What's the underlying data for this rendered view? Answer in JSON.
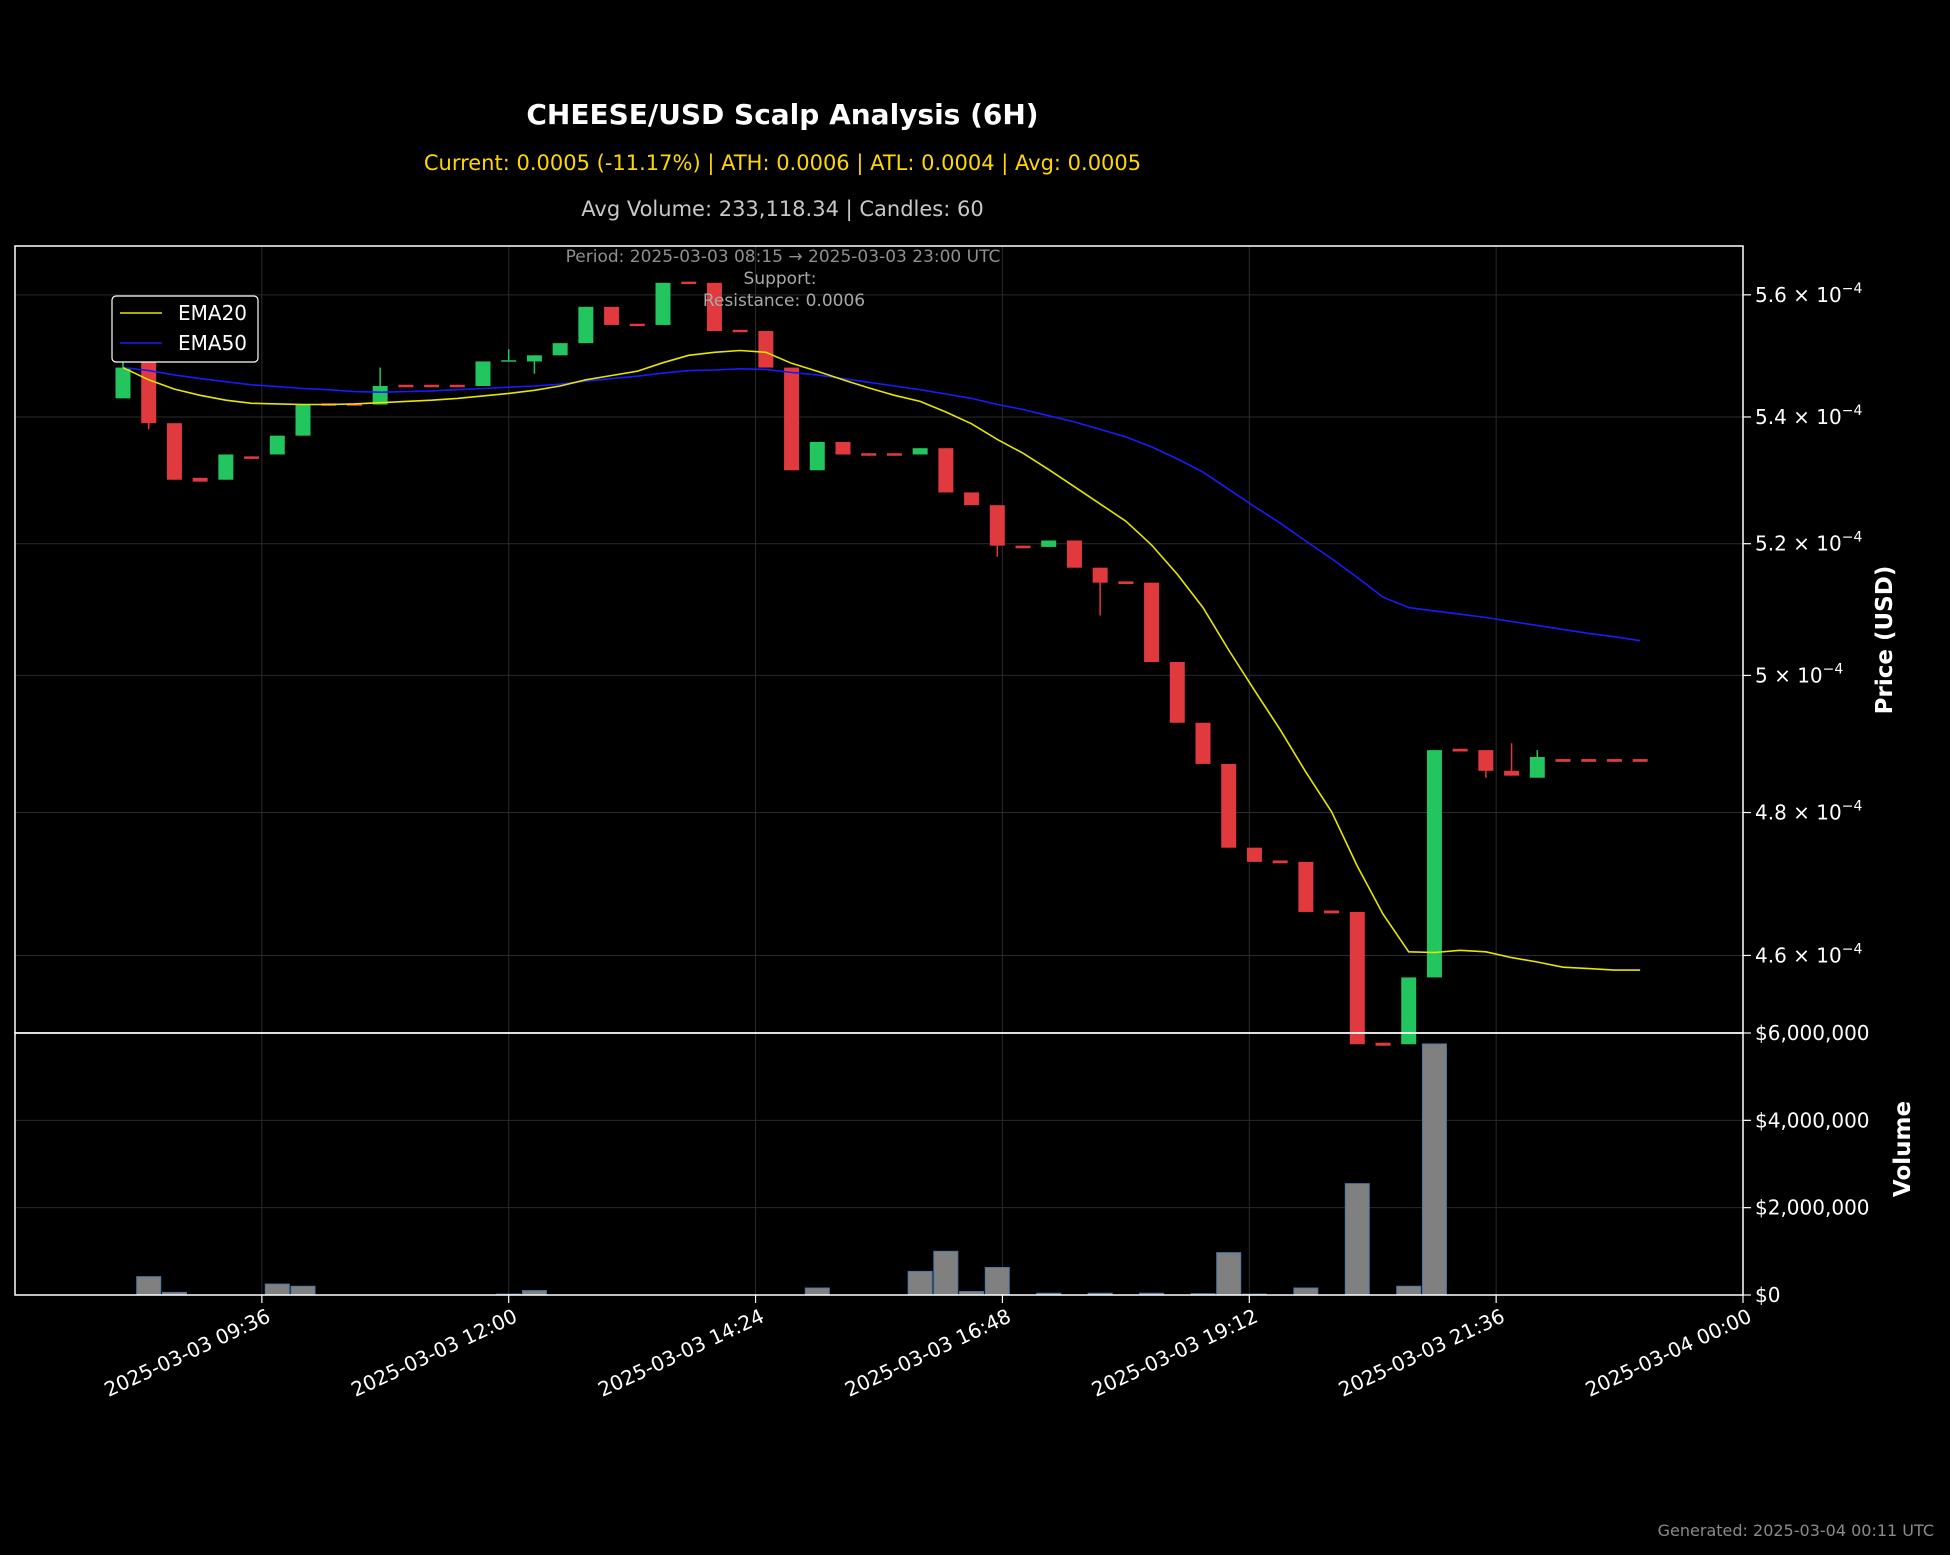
{
  "header": {
    "title": "CHEESE/USD Scalp Analysis (6H)",
    "subtitle_stats": "Current: 0.0005 (-11.17%) | ATH: 0.0006 | ATL: 0.0004 | Avg: 0.0005",
    "subtitle_volume": "Avg Volume: 233,118.34 | Candles: 60"
  },
  "annotations": {
    "period": "Period: 2025-03-03 08:15 → 2025-03-03 23:00 UTC",
    "support": "Support:",
    "resistance": "Resistance: 0.0006"
  },
  "footer": {
    "generated": "Generated: 2025-03-04 00:11 UTC"
  },
  "colors": {
    "background": "#000000",
    "up": "#22c55e",
    "down": "#e0393e",
    "ema20": "#e6e600",
    "ema50": "#1a1aff",
    "volume": "#808080",
    "volume_edge": "#4a78a8"
  },
  "chart_data": [
    {
      "type": "candlestick",
      "ylabel": "Price (USD)",
      "yscale": "log",
      "ylim": [
        0.0004495,
        0.0005682
      ],
      "xlim": [
        "2025-03-03 07:12",
        "2025-03-04 00:00"
      ],
      "x_ticks": [
        "2025-03-03 09:36",
        "2025-03-03 12:00",
        "2025-03-03 14:24",
        "2025-03-03 16:48",
        "2025-03-03 19:12",
        "2025-03-03 21:36",
        "2025-03-04 00:00"
      ],
      "y_ticks": [
        {
          "value": 0.00046,
          "mantissa": "4.6",
          "exp": "−4"
        },
        {
          "value": 0.00048,
          "mantissa": "4.8",
          "exp": "−4"
        },
        {
          "value": 0.0005,
          "mantissa": "5",
          "exp": "−4"
        },
        {
          "value": 0.00052,
          "mantissa": "5.2",
          "exp": "−4"
        },
        {
          "value": 0.00054,
          "mantissa": "5.4",
          "exp": "−4"
        },
        {
          "value": 0.00056,
          "mantissa": "5.6",
          "exp": "−4"
        }
      ],
      "grid": true,
      "legend_position": "top-left",
      "series": [
        {
          "name": "EMA20",
          "color": "#e6e600"
        },
        {
          "name": "EMA50",
          "color": "#1a1aff"
        }
      ],
      "candles": [
        {
          "t": "08:15",
          "o": 0.000543,
          "h": 0.000549,
          "l": 0.000543,
          "c": 0.000548
        },
        {
          "t": "08:30",
          "o": 0.000549,
          "h": 0.000549,
          "l": 0.000538,
          "c": 0.000539
        },
        {
          "t": "08:45",
          "o": 0.000539,
          "h": 0.000539,
          "l": 0.00053,
          "c": 0.00053
        },
        {
          "t": "09:00",
          "o": 0.0005303,
          "h": 0.0005303,
          "l": 0.0005297,
          "c": 0.0005297
        },
        {
          "t": "09:15",
          "o": 0.00053,
          "h": 0.000534,
          "l": 0.00053,
          "c": 0.000534
        },
        {
          "t": "09:30",
          "o": 0.0005337,
          "h": 0.0005337,
          "l": 0.0005333,
          "c": 0.0005333
        },
        {
          "t": "09:45",
          "o": 0.000534,
          "h": 0.000537,
          "l": 0.000534,
          "c": 0.000537
        },
        {
          "t": "10:00",
          "o": 0.000537,
          "h": 0.000542,
          "l": 0.000537,
          "c": 0.000542
        },
        {
          "t": "10:15",
          "o": 0.0005422,
          "h": 0.0005422,
          "l": 0.0005418,
          "c": 0.0005418
        },
        {
          "t": "10:30",
          "o": 0.0005422,
          "h": 0.0005422,
          "l": 0.0005418,
          "c": 0.0005418
        },
        {
          "t": "10:45",
          "o": 0.000542,
          "h": 0.000548,
          "l": 0.000542,
          "c": 0.000545
        },
        {
          "t": "11:00",
          "o": 0.0005452,
          "h": 0.0005452,
          "l": 0.0005448,
          "c": 0.0005448
        },
        {
          "t": "11:15",
          "o": 0.0005452,
          "h": 0.0005452,
          "l": 0.0005448,
          "c": 0.0005448
        },
        {
          "t": "11:30",
          "o": 0.0005452,
          "h": 0.0005452,
          "l": 0.0005448,
          "c": 0.0005448
        },
        {
          "t": "11:45",
          "o": 0.000545,
          "h": 0.000549,
          "l": 0.000545,
          "c": 0.000549
        },
        {
          "t": "12:00",
          "o": 0.000549,
          "h": 0.000551,
          "l": 0.000549,
          "c": 0.0005492
        },
        {
          "t": "12:15",
          "o": 0.000549,
          "h": 0.00055,
          "l": 0.000547,
          "c": 0.00055
        },
        {
          "t": "12:30",
          "o": 0.00055,
          "h": 0.000552,
          "l": 0.00055,
          "c": 0.000552
        },
        {
          "t": "12:45",
          "o": 0.000552,
          "h": 0.000558,
          "l": 0.000552,
          "c": 0.000558
        },
        {
          "t": "13:00",
          "o": 0.000558,
          "h": 0.000558,
          "l": 0.000555,
          "c": 0.000555
        },
        {
          "t": "13:15",
          "o": 0.0005552,
          "h": 0.0005552,
          "l": 0.0005548,
          "c": 0.0005548
        },
        {
          "t": "13:30",
          "o": 0.000555,
          "h": 0.000562,
          "l": 0.000555,
          "c": 0.000562
        },
        {
          "t": "13:45",
          "o": 0.0005622,
          "h": 0.0005622,
          "l": 0.0005618,
          "c": 0.0005618
        },
        {
          "t": "14:00",
          "o": 0.000562,
          "h": 0.000562,
          "l": 0.000554,
          "c": 0.000554
        },
        {
          "t": "14:15",
          "o": 0.0005542,
          "h": 0.0005542,
          "l": 0.0005538,
          "c": 0.0005538
        },
        {
          "t": "14:30",
          "o": 0.000554,
          "h": 0.000554,
          "l": 0.000548,
          "c": 0.000548
        },
        {
          "t": "14:45",
          "o": 0.000548,
          "h": 0.000548,
          "l": 0.0005315,
          "c": 0.0005315
        },
        {
          "t": "15:00",
          "o": 0.0005315,
          "h": 0.000536,
          "l": 0.0005315,
          "c": 0.000536
        },
        {
          "t": "15:15",
          "o": 0.000536,
          "h": 0.000536,
          "l": 0.000534,
          "c": 0.000534
        },
        {
          "t": "15:30",
          "o": 0.0005342,
          "h": 0.0005342,
          "l": 0.0005338,
          "c": 0.0005338
        },
        {
          "t": "15:45",
          "o": 0.0005342,
          "h": 0.0005342,
          "l": 0.0005338,
          "c": 0.0005338
        },
        {
          "t": "16:00",
          "o": 0.000534,
          "h": 0.000535,
          "l": 0.000534,
          "c": 0.000535
        },
        {
          "t": "16:15",
          "o": 0.000535,
          "h": 0.000535,
          "l": 0.000528,
          "c": 0.000528
        },
        {
          "t": "16:30",
          "o": 0.000528,
          "h": 0.000528,
          "l": 0.000526,
          "c": 0.000526
        },
        {
          "t": "16:45",
          "o": 0.000526,
          "h": 0.000526,
          "l": 0.000518,
          "c": 0.0005197
        },
        {
          "t": "17:00",
          "o": 0.0005197,
          "h": 0.0005197,
          "l": 0.0005193,
          "c": 0.0005193
        },
        {
          "t": "17:15",
          "o": 0.0005195,
          "h": 0.0005205,
          "l": 0.0005195,
          "c": 0.0005205
        },
        {
          "t": "17:30",
          "o": 0.0005205,
          "h": 0.0005205,
          "l": 0.0005163,
          "c": 0.0005163
        },
        {
          "t": "17:45",
          "o": 0.0005163,
          "h": 0.0005163,
          "l": 0.000509,
          "c": 0.000514
        },
        {
          "t": "18:00",
          "o": 0.0005142,
          "h": 0.0005142,
          "l": 0.0005138,
          "c": 0.0005138
        },
        {
          "t": "18:15",
          "o": 0.000514,
          "h": 0.000514,
          "l": 0.000502,
          "c": 0.000502
        },
        {
          "t": "18:30",
          "o": 0.000502,
          "h": 0.000502,
          "l": 0.000493,
          "c": 0.000493
        },
        {
          "t": "18:45",
          "o": 0.000493,
          "h": 0.000493,
          "l": 0.000487,
          "c": 0.000487
        },
        {
          "t": "19:00",
          "o": 0.000487,
          "h": 0.000487,
          "l": 0.000475,
          "c": 0.000475
        },
        {
          "t": "19:15",
          "o": 0.000475,
          "h": 0.000475,
          "l": 0.000473,
          "c": 0.000473
        },
        {
          "t": "19:30",
          "o": 0.0004732,
          "h": 0.0004732,
          "l": 0.0004728,
          "c": 0.0004728
        },
        {
          "t": "19:45",
          "o": 0.000473,
          "h": 0.000473,
          "l": 0.000466,
          "c": 0.000466
        },
        {
          "t": "20:00",
          "o": 0.0004662,
          "h": 0.0004662,
          "l": 0.0004658,
          "c": 0.0004658
        },
        {
          "t": "20:15",
          "o": 0.000466,
          "h": 0.000466,
          "l": 0.000448,
          "c": 0.000448
        },
        {
          "t": "20:30",
          "o": 0.0004482,
          "h": 0.0004482,
          "l": 0.0004478,
          "c": 0.0004478
        },
        {
          "t": "20:45",
          "o": 0.000448,
          "h": 0.000457,
          "l": 0.000448,
          "c": 0.000457
        },
        {
          "t": "21:00",
          "o": 0.000457,
          "h": 0.000489,
          "l": 0.000457,
          "c": 0.000489
        },
        {
          "t": "21:15",
          "o": 0.0004892,
          "h": 0.0004892,
          "l": 0.0004888,
          "c": 0.0004888
        },
        {
          "t": "21:30",
          "o": 0.000489,
          "h": 0.000489,
          "l": 0.000485,
          "c": 0.000486
        },
        {
          "t": "21:45",
          "o": 0.000486,
          "h": 0.00049,
          "l": 0.0004853,
          "c": 0.0004853
        },
        {
          "t": "22:00",
          "o": 0.000485,
          "h": 0.000489,
          "l": 0.000485,
          "c": 0.000488
        },
        {
          "t": "22:15",
          "o": 0.0004877,
          "h": 0.0004877,
          "l": 0.0004873,
          "c": 0.0004873
        },
        {
          "t": "22:30",
          "o": 0.0004877,
          "h": 0.0004877,
          "l": 0.0004873,
          "c": 0.0004873
        },
        {
          "t": "22:45",
          "o": 0.0004877,
          "h": 0.0004877,
          "l": 0.0004873,
          "c": 0.0004873
        },
        {
          "t": "23:00",
          "o": 0.0004877,
          "h": 0.0004877,
          "l": 0.0004873,
          "c": 0.0004873
        }
      ],
      "ema20": [
        0.000548,
        0.000546,
        0.0005445,
        0.0005435,
        0.0005427,
        0.0005422,
        0.0005421,
        0.000542,
        0.000542,
        0.0005421,
        0.0005423,
        0.0005425,
        0.0005427,
        0.000543,
        0.0005434,
        0.0005438,
        0.0005443,
        0.000545,
        0.000546,
        0.0005467,
        0.0005474,
        0.0005488,
        0.00055,
        0.0005505,
        0.0005508,
        0.0005505,
        0.0005487,
        0.0005474,
        0.000546,
        0.0005447,
        0.0005435,
        0.0005425,
        0.0005408,
        0.0005389,
        0.0005364,
        0.0005342,
        0.0005316,
        0.0005289,
        0.0005262,
        0.0005235,
        0.0005198,
        0.0005153,
        0.0005102,
        0.0005038,
        0.0004978,
        0.000492,
        0.0004858,
        0.0004801,
        0.0004724,
        0.0004657,
        0.0004605,
        0.0004604,
        0.0004607,
        0.0004605,
        0.0004597,
        0.0004591,
        0.0004584,
        0.0004582,
        0.000458,
        0.000458
      ],
      "ema50": [
        0.000548,
        0.0005475,
        0.0005468,
        0.0005462,
        0.0005457,
        0.0005452,
        0.0005449,
        0.0005446,
        0.0005444,
        0.0005441,
        0.000544,
        0.0005441,
        0.0005442,
        0.0005444,
        0.0005446,
        0.0005448,
        0.000545,
        0.0005453,
        0.0005458,
        0.0005462,
        0.0005466,
        0.0005471,
        0.0005475,
        0.0005476,
        0.0005478,
        0.0005477,
        0.0005472,
        0.0005468,
        0.0005462,
        0.0005456,
        0.000545,
        0.0005444,
        0.0005437,
        0.000543,
        0.000542,
        0.0005412,
        0.0005402,
        0.0005392,
        0.000538,
        0.0005368,
        0.0005352,
        0.0005333,
        0.0005312,
        0.0005285,
        0.0005258,
        0.0005232,
        0.0005204,
        0.0005177,
        0.0005148,
        0.0005118,
        0.0005102,
        0.0005097,
        0.0005092,
        0.0005087,
        0.0005081,
        0.0005075,
        0.0005069,
        0.0005063,
        0.0005058,
        0.0005052
      ]
    },
    {
      "type": "bar",
      "ylabel": "Volume",
      "ylim": [
        0,
        6000000
      ],
      "y_ticks": [
        "$0",
        "$2,000,000",
        "$4,000,000",
        "$6,000,000"
      ],
      "y_tick_values": [
        0,
        2000000,
        4000000,
        6000000
      ],
      "grid": true,
      "values": [
        0,
        420000,
        60000,
        0,
        0,
        0,
        250000,
        200000,
        0,
        0,
        0,
        0,
        0,
        0,
        0,
        20000,
        100000,
        0,
        0,
        0,
        0,
        0,
        0,
        0,
        0,
        0,
        0,
        160000,
        0,
        0,
        0,
        540000,
        1000000,
        80000,
        630000,
        0,
        40000,
        0,
        40000,
        0,
        40000,
        0,
        30000,
        970000,
        20000,
        0,
        160000,
        0,
        2550000,
        0,
        200000,
        5750000,
        0,
        0,
        0,
        0,
        0,
        0,
        0,
        0
      ]
    }
  ]
}
